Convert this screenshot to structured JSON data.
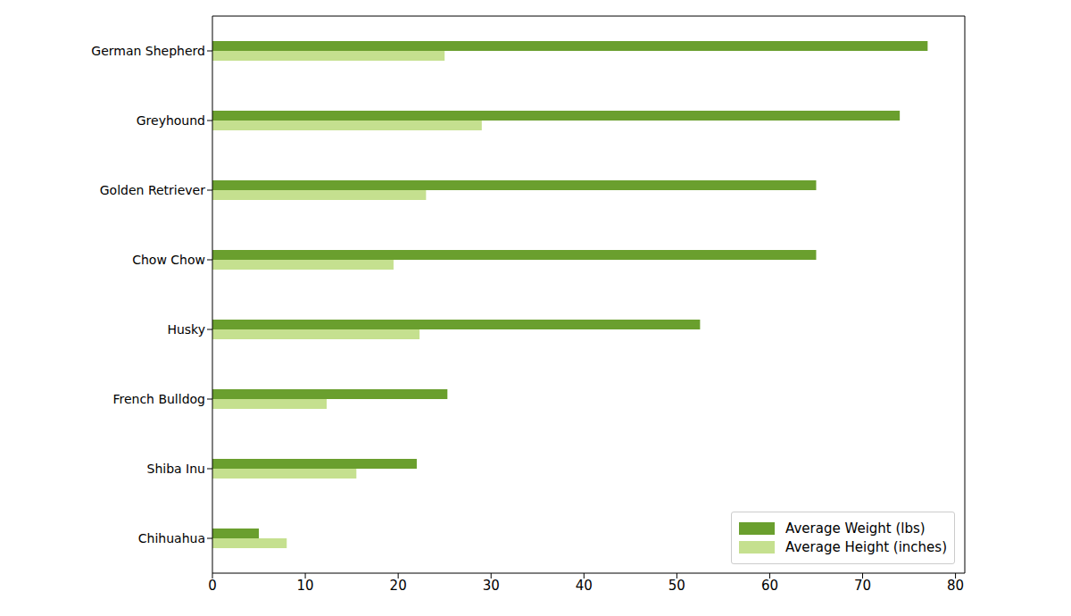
{
  "chart_data": {
    "type": "bar",
    "orientation": "horizontal",
    "categories": [
      "German Shepherd",
      "Greyhound",
      "Golden Retriever",
      "Chow Chow",
      "Husky",
      "French Bulldog",
      "Shiba Inu",
      "Chihuahua"
    ],
    "series": [
      {
        "name": "Average Weight (lbs)",
        "color": "#6a9f2e",
        "values": [
          77,
          74,
          65,
          65,
          52.5,
          25.3,
          22,
          5
        ]
      },
      {
        "name": "Average Height (inches)",
        "color": "#c5e08f",
        "values": [
          25,
          29,
          23,
          19.5,
          22.3,
          12.3,
          15.5,
          8
        ]
      }
    ],
    "xlim": [
      0,
      81
    ],
    "xticks": [
      0,
      10,
      20,
      30,
      40,
      50,
      60,
      70,
      80
    ],
    "grid": false,
    "legend": "lower right"
  }
}
